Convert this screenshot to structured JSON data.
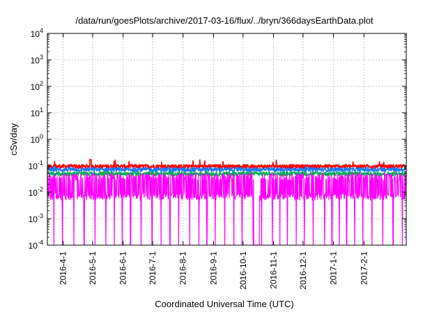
{
  "chart_data": {
    "type": "line",
    "title": "/data/run/goesPlots/archive/2017-03-16/flux/../bryn/366daysEarthData.plot",
    "xlabel": "Coordinated Universal Time (UTC)",
    "ylabel": "cSv/day",
    "yscale": "log",
    "ylim": [
      0.0001,
      10000
    ],
    "xlim": [
      "2016-03-16",
      "2017-03-16"
    ],
    "grid": true,
    "legend": "none",
    "y_ticks": [
      {
        "base": "10",
        "exp": "-4",
        "value": 0.0001
      },
      {
        "base": "10",
        "exp": "-3",
        "value": 0.001
      },
      {
        "base": "10",
        "exp": "-2",
        "value": 0.01
      },
      {
        "base": "10",
        "exp": "-1",
        "value": 0.1
      },
      {
        "base": "10",
        "exp": "0",
        "value": 1
      },
      {
        "base": "10",
        "exp": "1",
        "value": 10
      },
      {
        "base": "10",
        "exp": "2",
        "value": 100
      },
      {
        "base": "10",
        "exp": "3",
        "value": 1000
      },
      {
        "base": "10",
        "exp": "4",
        "value": 10000
      }
    ],
    "x_ticks": [
      {
        "label": "2016-4-1",
        "date": "2016-04-01"
      },
      {
        "label": "2016-5-1",
        "date": "2016-05-01"
      },
      {
        "label": "2016-6-1",
        "date": "2016-06-01"
      },
      {
        "label": "2016-7-1",
        "date": "2016-07-01"
      },
      {
        "label": "2016-8-1",
        "date": "2016-08-01"
      },
      {
        "label": "2016-9-1",
        "date": "2016-09-01"
      },
      {
        "label": "2016-10-1",
        "date": "2016-10-01"
      },
      {
        "label": "2016-11-1",
        "date": "2016-11-01"
      },
      {
        "label": "2016-12-1",
        "date": "2016-12-01"
      },
      {
        "label": "2017-1-1",
        "date": "2017-01-01"
      },
      {
        "label": "2017-2-1",
        "date": "2017-02-01"
      }
    ],
    "series": [
      {
        "color": "#ff0000",
        "typical": 0.095,
        "min": 0.075,
        "max": 0.17
      },
      {
        "color": "#1e78ff",
        "typical": 0.072,
        "min": 0.05,
        "max": 0.1
      },
      {
        "color": "#00b050",
        "typical": 0.05,
        "min": 0.035,
        "max": 0.065
      },
      {
        "color": "#ff00ff",
        "typical": 0.04,
        "min": 0.0001,
        "max": 0.06
      }
    ]
  }
}
